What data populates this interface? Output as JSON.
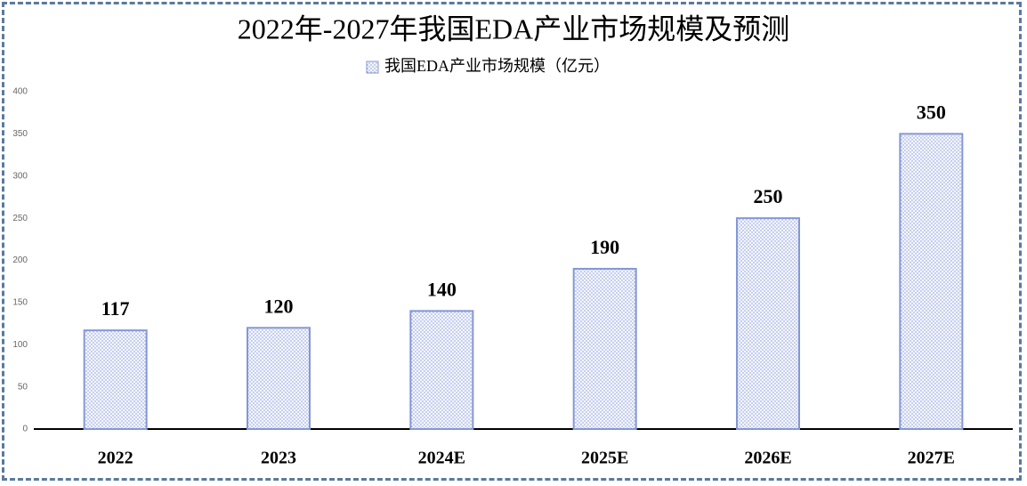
{
  "chart_data": {
    "type": "bar",
    "title": "2022年-2027年我国EDA产业市场规模及预测",
    "categories": [
      "2022",
      "2023",
      "2024E",
      "2025E",
      "2026E",
      "2027E"
    ],
    "series": [
      {
        "name": "我国EDA产业市场规模（亿元）",
        "color": "#8497d6",
        "values": [
          117,
          120,
          140,
          190,
          250,
          350
        ]
      }
    ],
    "ylim": [
      0,
      400
    ],
    "yticks": [
      0,
      50,
      100,
      150,
      200,
      250,
      300,
      350,
      400
    ],
    "grid": false,
    "legend": "top"
  }
}
